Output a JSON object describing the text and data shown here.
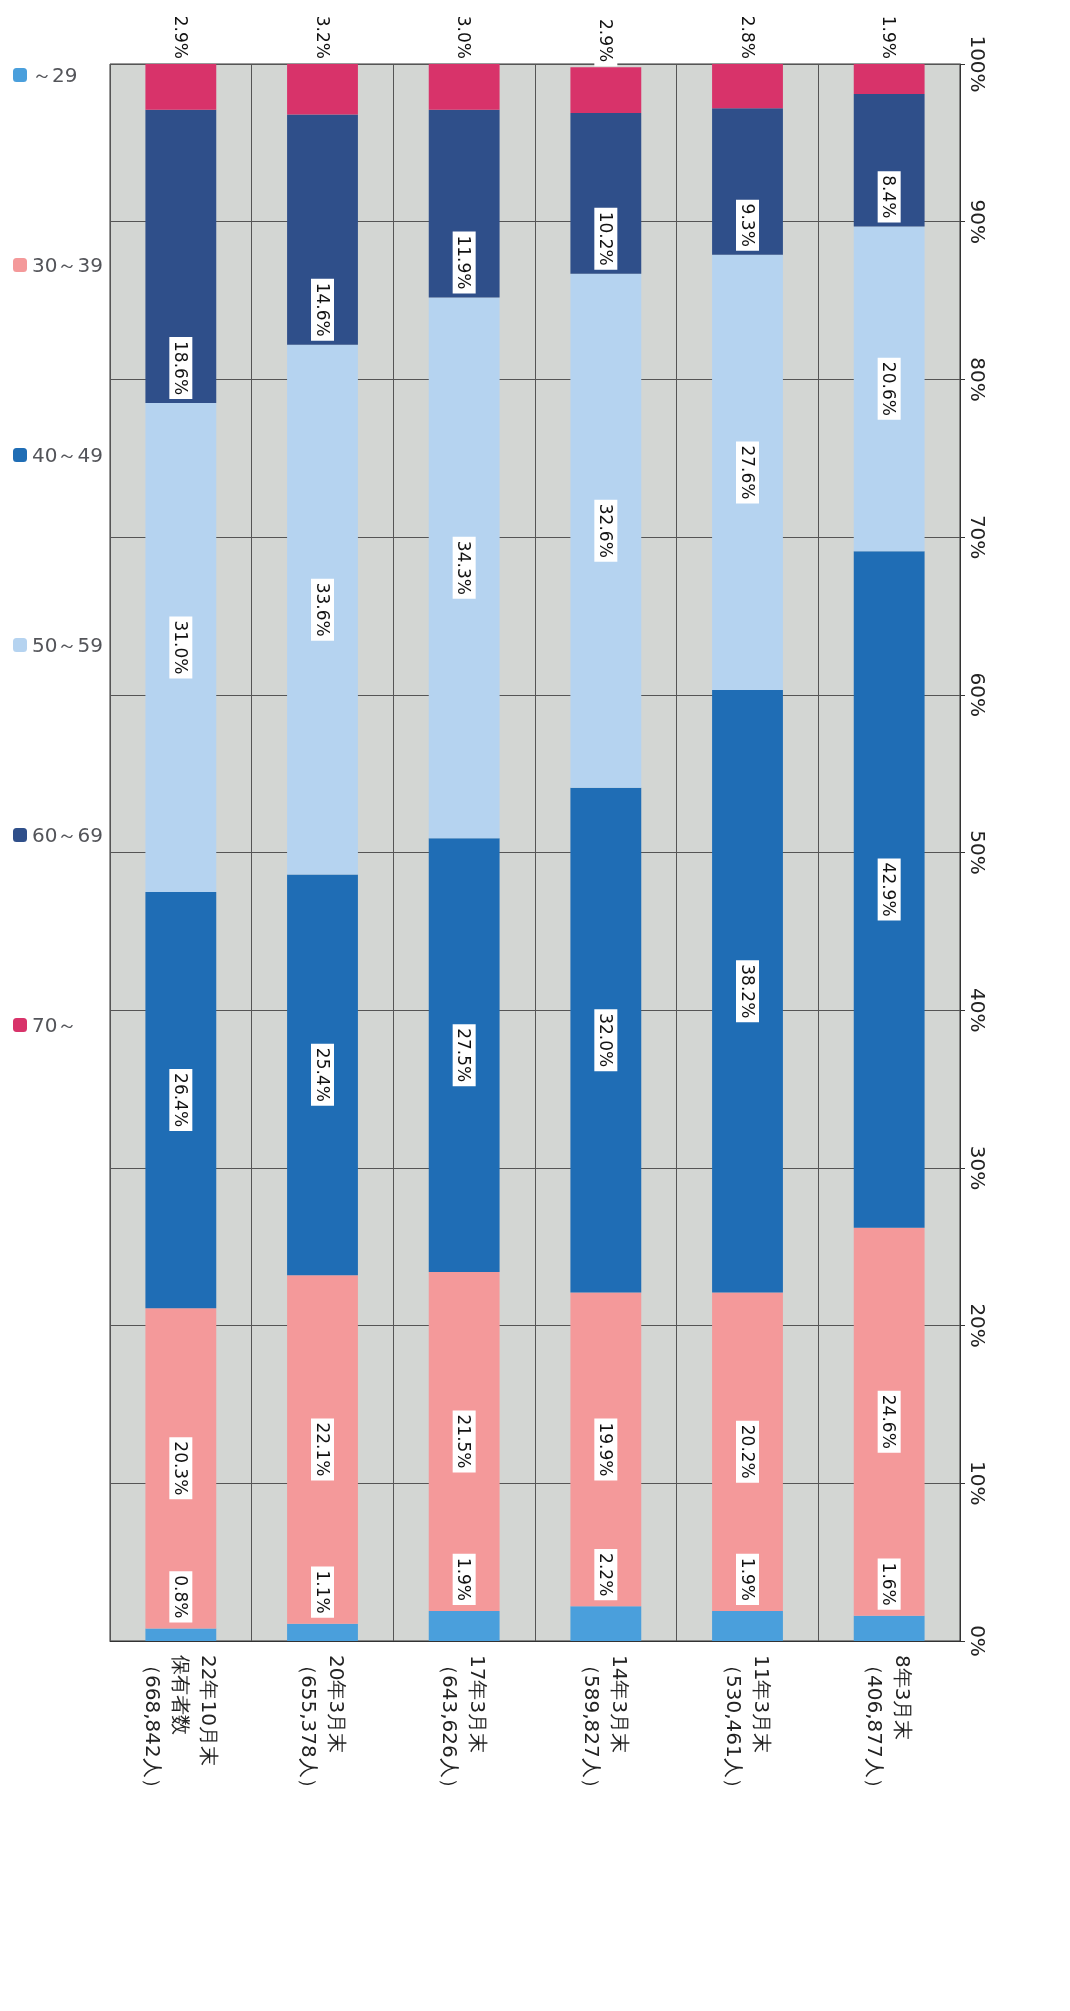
{
  "chart_data": {
    "type": "bar",
    "stacked": true,
    "categories": [
      "22年10月末保有者数（668,842人）",
      "20年3月末（655,378人）",
      "17年3月末（643,626人）",
      "14年3月末（589,827人）",
      "11年3月末（530,461人）",
      "8年3月末（406,877人）"
    ],
    "series": [
      {
        "name": "～29",
        "color": "#4a9fdc",
        "values": [
          0.8,
          1.1,
          1.9,
          2.2,
          1.9,
          1.6
        ],
        "value_labels": [
          "0.8%",
          "1.1%",
          "1.9%",
          "2.2%",
          "1.9%",
          "1.6%"
        ]
      },
      {
        "name": "30～39",
        "color": "#f4999a",
        "values": [
          20.3,
          22.1,
          21.5,
          19.9,
          20.2,
          24.6
        ],
        "value_labels": [
          "20.3%",
          "22.1%",
          "21.5%",
          "19.9%",
          "20.2%",
          "24.6%"
        ]
      },
      {
        "name": "40～49",
        "color": "#1f6db5",
        "values": [
          26.4,
          25.4,
          27.5,
          32.0,
          38.2,
          42.9
        ],
        "value_labels": [
          "26.4%",
          "25.4%",
          "27.5%",
          "32.0%",
          "38.2%",
          "42.9%"
        ]
      },
      {
        "name": "50～59",
        "color": "#b5d3f0",
        "values": [
          31.0,
          33.6,
          34.3,
          32.6,
          27.6,
          20.6
        ],
        "value_labels": [
          "31.0%",
          "33.6%",
          "34.3%",
          "32.6%",
          "27.6%",
          "20.6%"
        ]
      },
      {
        "name": "60～69",
        "color": "#2f4f8a",
        "values": [
          18.6,
          14.6,
          11.9,
          10.2,
          9.3,
          8.4
        ],
        "value_labels": [
          "18.6%",
          "14.6%",
          "11.9%",
          "10.2%",
          "9.3%",
          "8.4%"
        ]
      },
      {
        "name": "70～",
        "color": "#d8336a",
        "values": [
          2.9,
          3.2,
          3.0,
          2.9,
          2.8,
          1.9
        ],
        "value_labels": [
          "2.9%",
          "3.2%",
          "3.0%",
          "2.9%",
          "2.8%",
          "1.9%"
        ]
      }
    ],
    "ylim": [
      0,
      100
    ],
    "yticks": [
      {
        "value": 0,
        "label": "0%"
      },
      {
        "value": 10,
        "label": "10%"
      },
      {
        "value": 20,
        "label": "20%"
      },
      {
        "value": 30,
        "label": "30%"
      },
      {
        "value": 40,
        "label": "40%"
      },
      {
        "value": 50,
        "label": "50%"
      },
      {
        "value": 60,
        "label": "60%"
      },
      {
        "value": 70,
        "label": "70%"
      },
      {
        "value": 80,
        "label": "80%"
      },
      {
        "value": 90,
        "label": "90%"
      },
      {
        "value": 100,
        "label": "100%"
      }
    ],
    "grid": true,
    "legend": "left"
  }
}
